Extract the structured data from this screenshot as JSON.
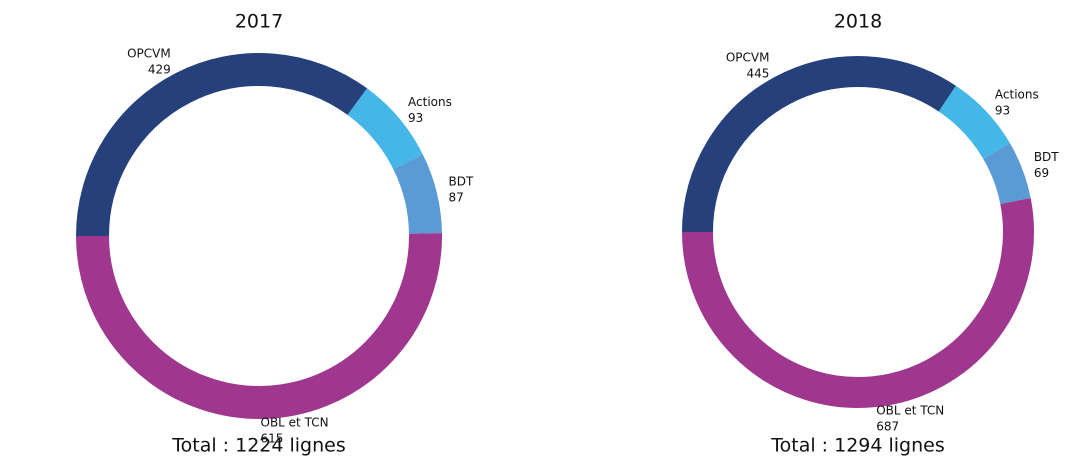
{
  "chart_data": [
    {
      "type": "donut",
      "title": "2017",
      "footer": "Total : 1224 lignes",
      "categories": [
        "Actions",
        "BDT",
        "OBL et TCN",
        "OPCVM"
      ],
      "values": [
        93,
        87,
        615,
        429
      ],
      "colors": [
        "#45b6e8",
        "#5b9bd5",
        "#a0378f",
        "#26407c"
      ]
    },
    {
      "type": "donut",
      "title": "2018",
      "footer": "Total : 1294 lignes",
      "categories": [
        "Actions",
        "BDT",
        "OBL et TCN",
        "OPCVM"
      ],
      "values": [
        93,
        69,
        687,
        445
      ],
      "colors": [
        "#45b6e8",
        "#5b9bd5",
        "#a0378f",
        "#26407c"
      ]
    }
  ]
}
